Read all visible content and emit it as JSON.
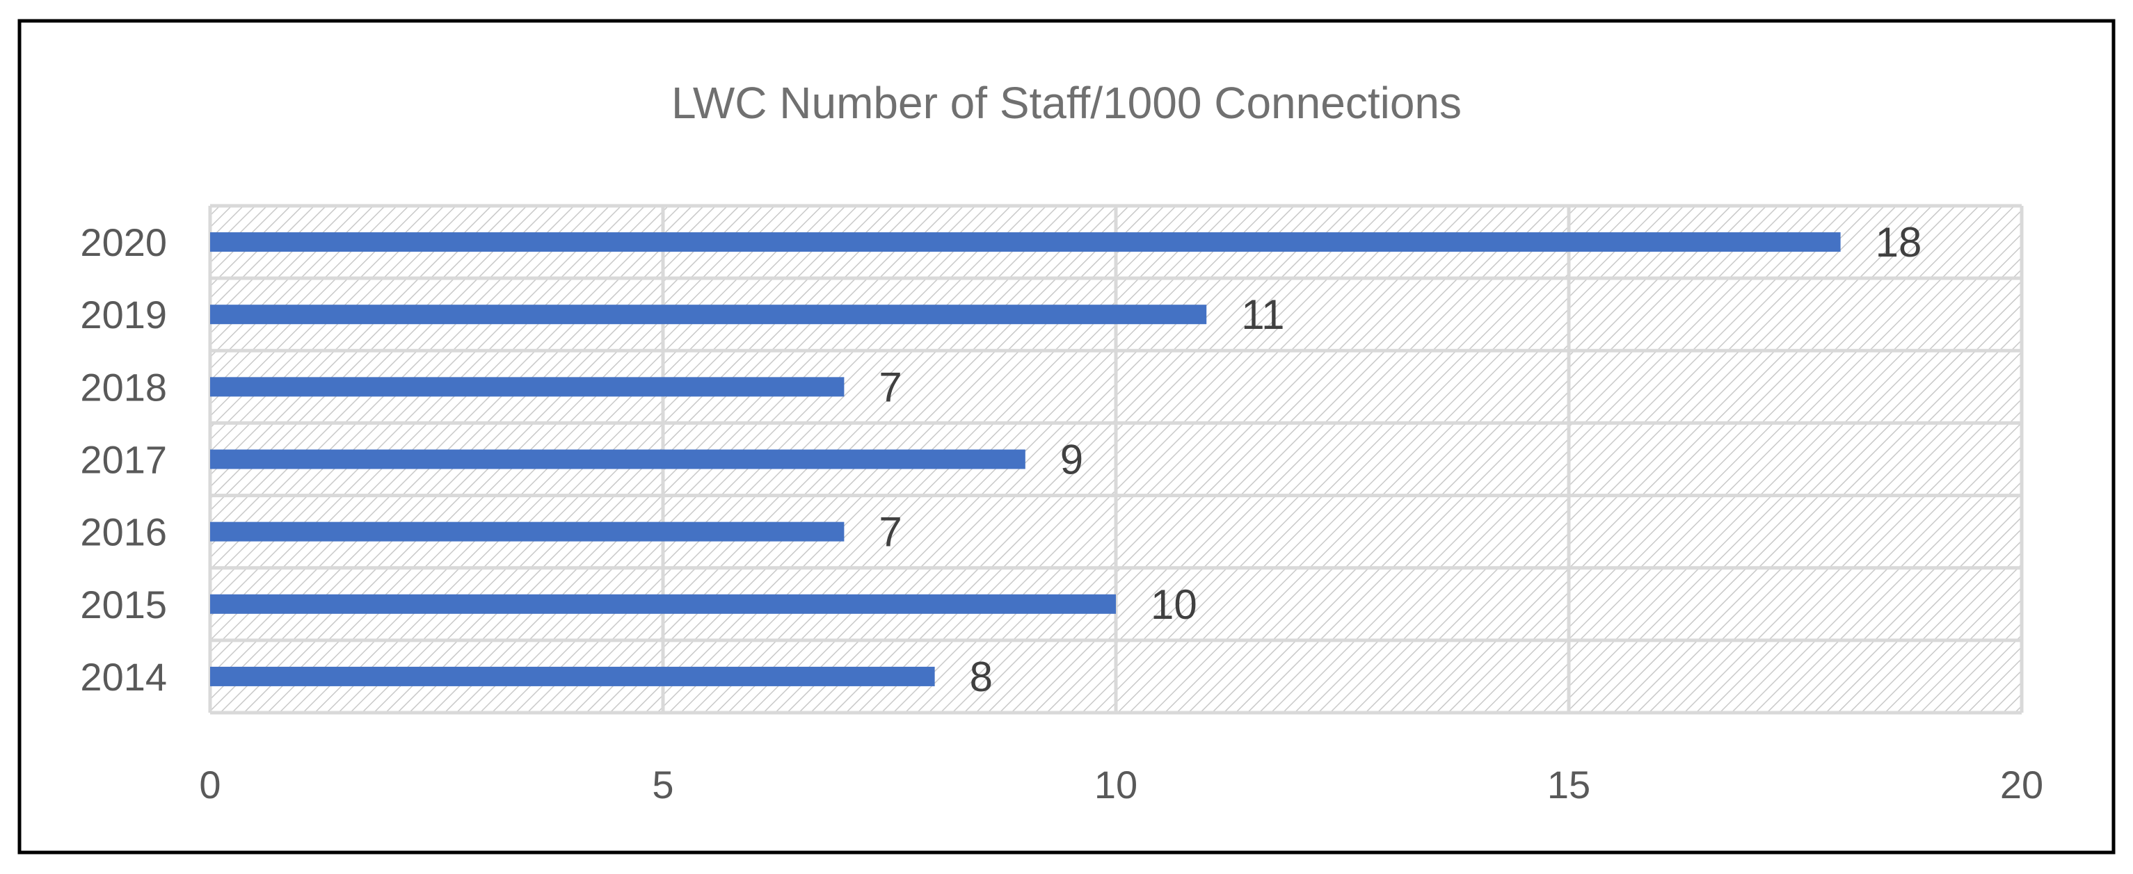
{
  "chart_data": {
    "type": "bar",
    "orientation": "horizontal",
    "title": "LWC Number  of Staff/1000 Connections",
    "categories": [
      "2020",
      "2019",
      "2018",
      "2017",
      "2016",
      "2015",
      "2014"
    ],
    "values": [
      18,
      11,
      7,
      9,
      7,
      10,
      8
    ],
    "xlim": [
      0,
      20
    ],
    "x_ticks": [
      "0",
      "5",
      "10",
      "15",
      "20"
    ],
    "grid": true,
    "legend": "none",
    "bar_color": "#4472C4"
  }
}
